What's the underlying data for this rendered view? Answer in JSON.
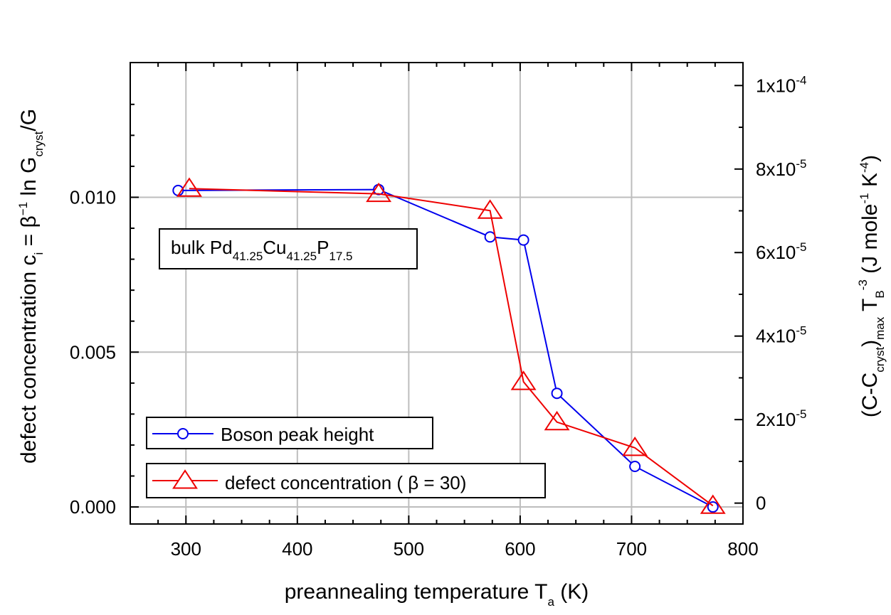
{
  "chart_data": {
    "type": "line",
    "x_axis": {
      "label_main": "preannealing temperature T",
      "label_sub": "a",
      "label_unit": " (K)",
      "range": [
        250,
        800
      ],
      "ticks": [
        300,
        400,
        500,
        600,
        700,
        800
      ],
      "tick_labels": [
        "300",
        "400",
        "500",
        "600",
        "700",
        "800"
      ]
    },
    "y_left": {
      "label_prefix": "defect concentration c",
      "label_sub_i": "i",
      "label_eq": " = β",
      "label_sup": "−1",
      "label_ln": " ln G",
      "label_sub_cryst": "cryst",
      "label_tail": "/G",
      "range": [
        -0.00055,
        0.01435
      ],
      "ticks": [
        0.0,
        0.005,
        0.01
      ],
      "tick_labels": [
        "0.000",
        "0.005",
        "0.010"
      ]
    },
    "y_right": {
      "label_open": "(C-C",
      "label_sub_cryst": "cryst",
      "label_close": ")",
      "label_sub_max": "max",
      "label_T": "  T",
      "label_sub_B": "B",
      "label_sup_3": "-3",
      "label_unit_a": "  (J mole",
      "label_sup_1": "-1",
      "label_unit_b": " K",
      "label_sup_4": "-4",
      "label_unit_c": ")",
      "range": [
        -5e-06,
        0.0001055
      ],
      "ticks": [
        0,
        2e-05,
        4e-05,
        6e-05,
        8e-05,
        0.0001
      ],
      "tick_labels": [
        {
          "main": "0",
          "sup": ""
        },
        {
          "main": "2x10",
          "sup": "-5"
        },
        {
          "main": "4x10",
          "sup": "-5"
        },
        {
          "main": "6x10",
          "sup": "-5"
        },
        {
          "main": "8x10",
          "sup": "-5"
        },
        {
          "main": "1x10",
          "sup": "-4"
        }
      ]
    },
    "grid": true,
    "series": [
      {
        "name": "Boson peak height",
        "color": "#0000ee",
        "marker": "circle",
        "axis": "left",
        "x": [
          293,
          473,
          573,
          603,
          633,
          703,
          773
        ],
        "y": [
          0.01022,
          0.01025,
          0.00872,
          0.00862,
          0.00367,
          0.00131,
          0.0
        ]
      },
      {
        "name": "defect concentration ( β = 30)",
        "color": "#ee0000",
        "marker": "triangle",
        "axis": "left",
        "x": [
          303,
          473,
          573,
          603,
          633,
          703,
          773
        ],
        "y": [
          0.01028,
          0.01011,
          0.00957,
          0.00404,
          0.00274,
          0.00191,
          4e-05
        ]
      }
    ],
    "annotation": {
      "prefix": "bulk Pd",
      "sub1": "41.25",
      "mid": "Cu",
      "sub2": "41.25",
      "el3": "P",
      "sub3": "17.5"
    },
    "legend": {
      "placement": "bottom-left",
      "entries": [
        "Boson peak height",
        "defect concentration ( β = 30)"
      ]
    }
  }
}
